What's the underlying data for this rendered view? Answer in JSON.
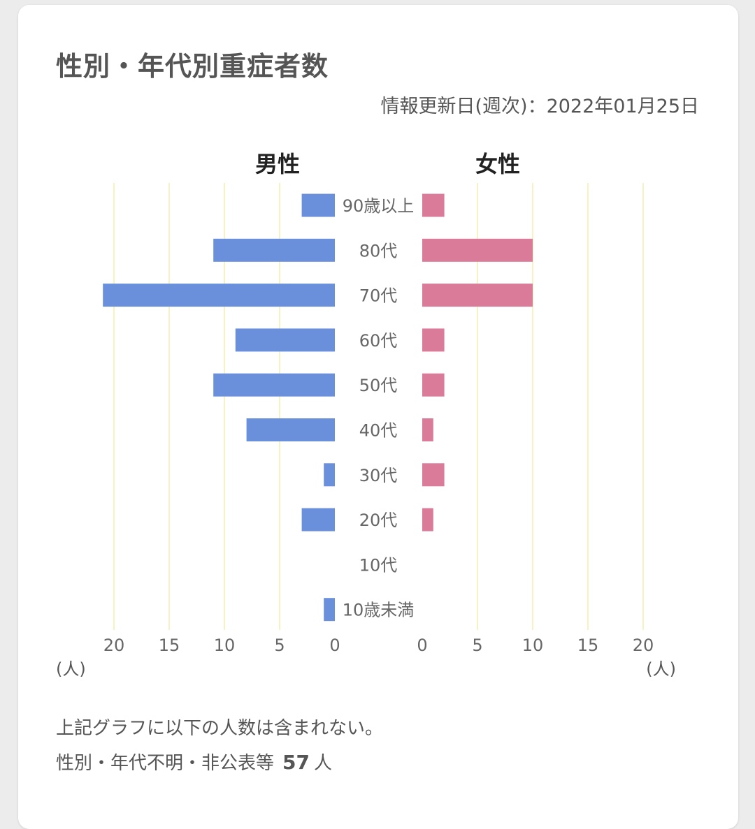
{
  "card": {
    "title": "性別・年代別重症者数",
    "updated": "情報更新日(週次)：2022年01月25日"
  },
  "chart_data": {
    "type": "bar",
    "orientation": "horizontal-population-pyramid",
    "categories": [
      "90歳以上",
      "80代",
      "70代",
      "60代",
      "50代",
      "40代",
      "30代",
      "20代",
      "10代",
      "10歳未満"
    ],
    "series": [
      {
        "name": "男性",
        "values": [
          3,
          11,
          21,
          9,
          11,
          8,
          1,
          3,
          0,
          1
        ],
        "color": "#6a8fdb"
      },
      {
        "name": "女性",
        "values": [
          2,
          10,
          10,
          2,
          2,
          1,
          2,
          1,
          0,
          0
        ],
        "color": "#d97b99"
      }
    ],
    "xlim": [
      0,
      20
    ],
    "ticks": [
      0,
      5,
      10,
      15,
      20
    ],
    "unit": "(人)",
    "grid": true,
    "grid_color": "#f7f2c4"
  },
  "notes": {
    "line1": "上記グラフに以下の人数は含まれない。",
    "line2_label": "性別・年代不明・非公表等",
    "line2_value": "57",
    "line2_unit": "人"
  }
}
